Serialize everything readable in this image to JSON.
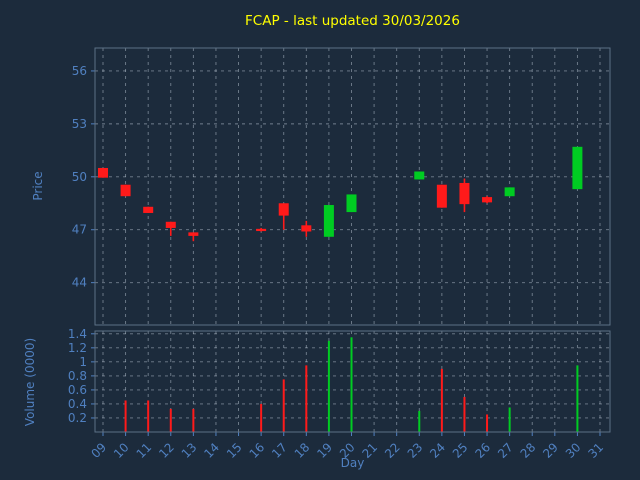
{
  "title": "FCAP - last updated 30/03/2026",
  "colors": {
    "background": "#1c2b3c",
    "title": "#ffff00",
    "axis": "#5080c0",
    "grid": "#c9d6e2",
    "spine": "#5d7186",
    "up": "#00cc22",
    "down": "#ff1a1a"
  },
  "chart_data": [
    {
      "type": "candlestick",
      "name": "price-panel",
      "title": "FCAP - last updated 30/03/2026",
      "xlabel": "Day",
      "ylabel": "Price",
      "grid": true,
      "x_ticks": [
        "09",
        "10",
        "11",
        "12",
        "13",
        "14",
        "15",
        "16",
        "17",
        "18",
        "19",
        "20",
        "21",
        "22",
        "23",
        "24",
        "25",
        "26",
        "27",
        "28",
        "29",
        "30",
        "31"
      ],
      "y_ticks": [
        "44",
        "47",
        "50",
        "53",
        "56"
      ],
      "ylim": [
        41.6,
        57.3
      ],
      "candles": [
        {
          "day": "09",
          "open": 50.5,
          "close": 49.95,
          "high": 50.5,
          "low": 49.95
        },
        {
          "day": "10",
          "open": 49.55,
          "close": 48.9,
          "high": 49.55,
          "low": 48.9
        },
        {
          "day": "11",
          "open": 48.3,
          "close": 47.95,
          "high": 48.3,
          "low": 47.95
        },
        {
          "day": "12",
          "open": 47.45,
          "close": 47.1,
          "high": 47.45,
          "low": 46.65
        },
        {
          "day": "13",
          "open": 46.85,
          "close": 46.65,
          "high": 46.85,
          "low": 46.35
        },
        {
          "day": "16",
          "open": 47.05,
          "close": 46.95,
          "high": 47.1,
          "low": 46.9
        },
        {
          "day": "17",
          "open": 48.5,
          "close": 47.8,
          "high": 48.5,
          "low": 47.0
        },
        {
          "day": "18",
          "open": 47.25,
          "close": 46.9,
          "high": 47.5,
          "low": 46.6
        },
        {
          "day": "19",
          "open": 46.6,
          "close": 48.4,
          "high": 48.4,
          "low": 46.6
        },
        {
          "day": "20",
          "open": 48.0,
          "close": 49.0,
          "high": 49.0,
          "low": 48.0
        },
        {
          "day": "23",
          "open": 49.85,
          "close": 50.3,
          "high": 50.3,
          "low": 49.85
        },
        {
          "day": "24",
          "open": 49.55,
          "close": 48.25,
          "high": 49.55,
          "low": 48.25
        },
        {
          "day": "25",
          "open": 49.65,
          "close": 48.45,
          "high": 49.9,
          "low": 48.0
        },
        {
          "day": "26",
          "open": 48.85,
          "close": 48.55,
          "high": 48.9,
          "low": 48.5
        },
        {
          "day": "27",
          "open": 48.9,
          "close": 49.4,
          "high": 49.4,
          "low": 48.9
        },
        {
          "day": "30",
          "open": 49.3,
          "close": 51.7,
          "high": 51.7,
          "low": 49.3
        }
      ]
    },
    {
      "type": "bar",
      "name": "volume-panel",
      "ylabel": "Volume (0000)",
      "grid": true,
      "y_ticks": [
        "0.2",
        "0.4",
        "0.6",
        "0.8",
        "1",
        "1.2",
        "1.4"
      ],
      "ylim": [
        0,
        1.44
      ],
      "bars": [
        {
          "day": "10",
          "value": 0.45
        },
        {
          "day": "11",
          "value": 0.45
        },
        {
          "day": "12",
          "value": 0.33
        },
        {
          "day": "13",
          "value": 0.33
        },
        {
          "day": "16",
          "value": 0.4
        },
        {
          "day": "17",
          "value": 0.75
        },
        {
          "day": "18",
          "value": 0.95
        },
        {
          "day": "19",
          "value": 1.3
        },
        {
          "day": "20",
          "value": 1.35
        },
        {
          "day": "23",
          "value": 0.3
        },
        {
          "day": "24",
          "value": 0.9
        },
        {
          "day": "25",
          "value": 0.5
        },
        {
          "day": "26",
          "value": 0.25
        },
        {
          "day": "27",
          "value": 0.35
        },
        {
          "day": "30",
          "value": 0.95
        }
      ]
    }
  ]
}
